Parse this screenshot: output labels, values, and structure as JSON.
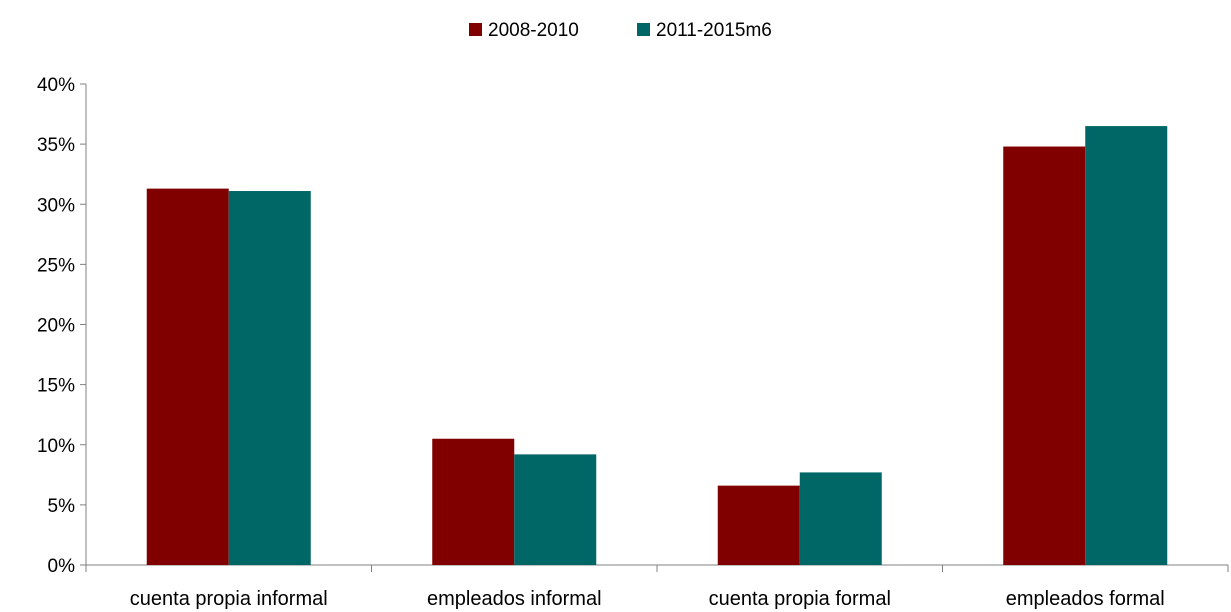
{
  "chart_data": {
    "type": "bar",
    "categories": [
      "cuenta propia informal",
      "empleados informal",
      "cuenta propia formal",
      "empleados formal"
    ],
    "series": [
      {
        "name": "2008-2010",
        "color": "#800000",
        "values": [
          31.3,
          10.5,
          6.6,
          34.8
        ]
      },
      {
        "name": "2011-2015m6",
        "color": "#006666",
        "values": [
          31.1,
          9.2,
          7.7,
          36.5
        ]
      }
    ],
    "y_ticks": [
      "0%",
      "5%",
      "10%",
      "15%",
      "20%",
      "25%",
      "30%",
      "35%",
      "40%"
    ],
    "ylim": [
      0,
      40
    ],
    "y_unit": "%",
    "grid": false,
    "legend_position": "top-center"
  }
}
